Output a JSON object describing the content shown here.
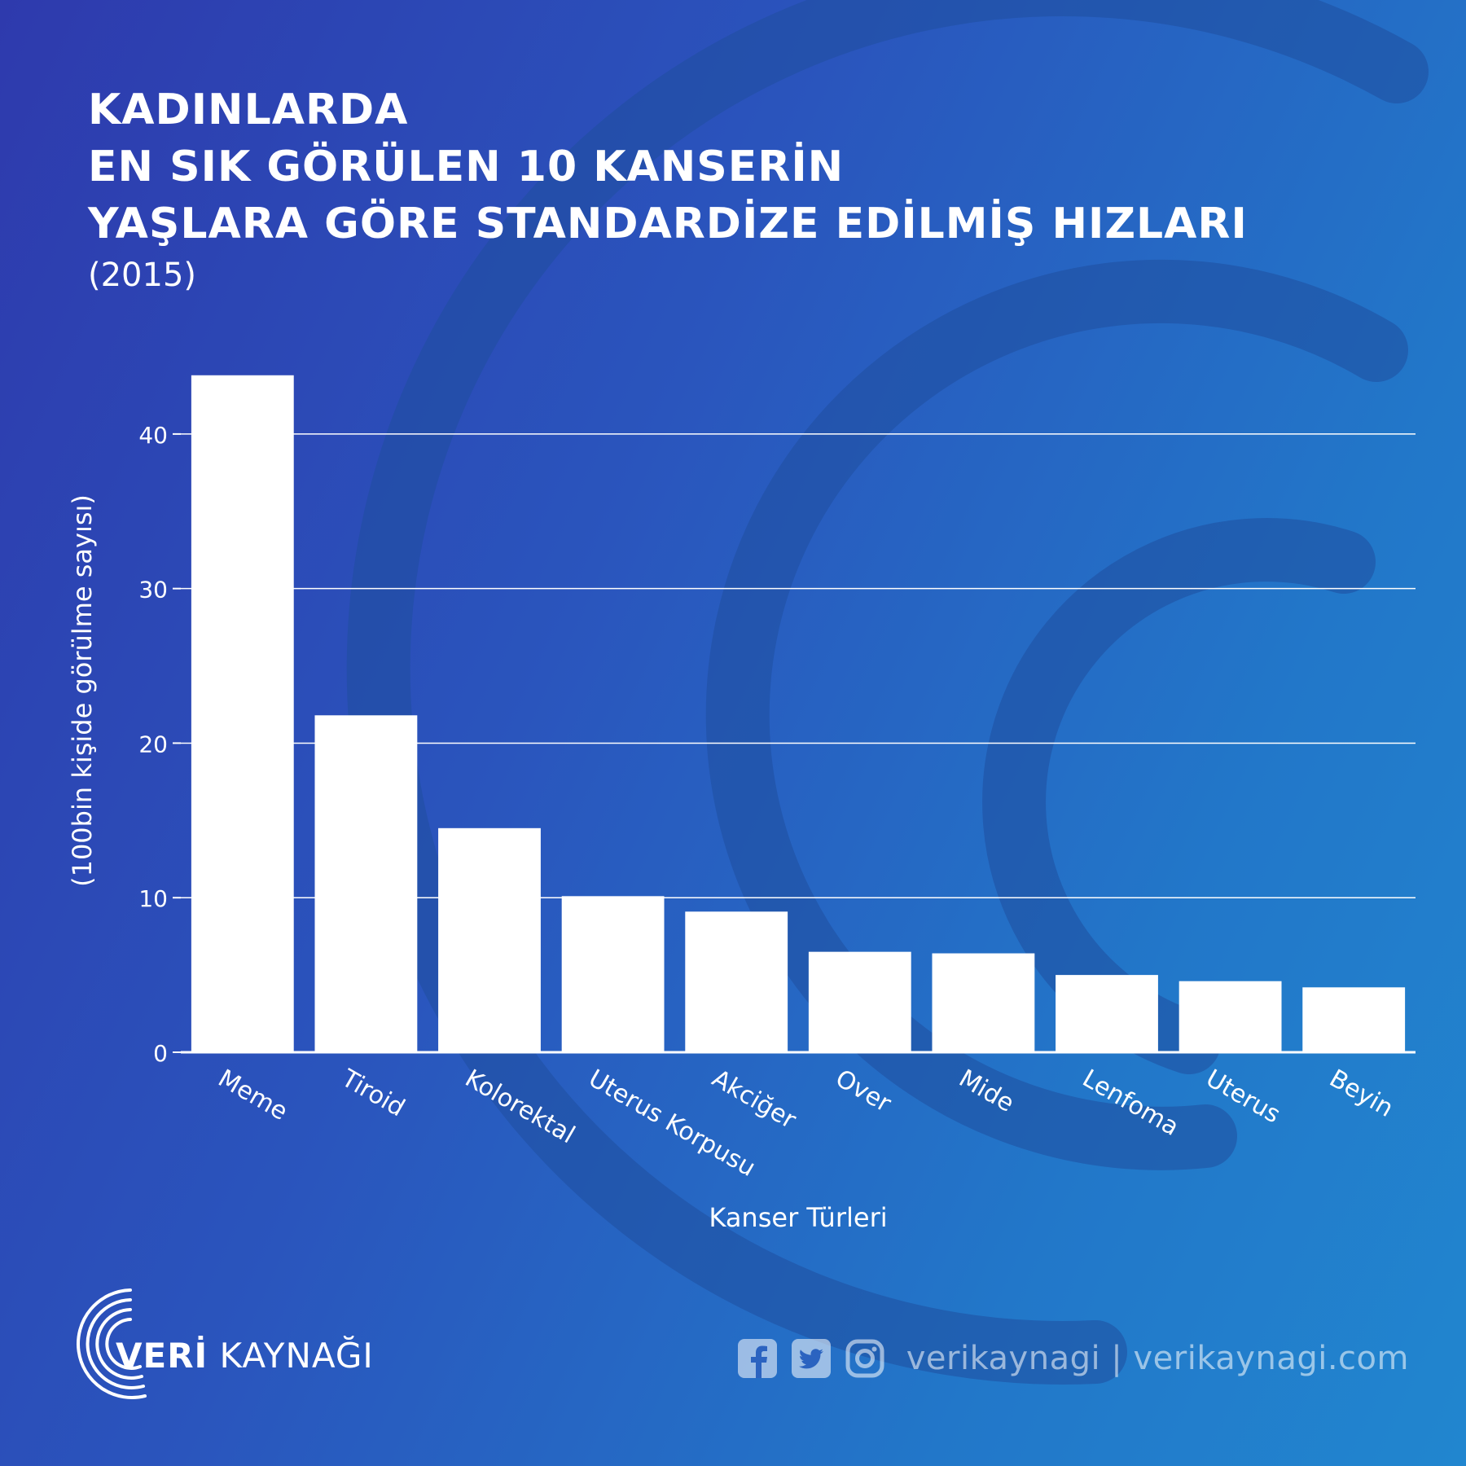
{
  "header": {
    "title_lines": [
      "KADINLARDA",
      "EN SIK GÖRÜLEN 10 KANSERİN",
      "YAŞLARA GÖRE STANDARDİZE EDİLMİŞ HIZLARI"
    ],
    "year": "(2015)"
  },
  "chart_data": {
    "type": "bar",
    "categories": [
      "Meme",
      "Tiroid",
      "Kolorektal",
      "Uterus Korpusu",
      "Akciğer",
      "Over",
      "Mide",
      "Lenfoma",
      "Uterus",
      "Beyin"
    ],
    "values": [
      43.8,
      21.8,
      14.5,
      10.1,
      9.1,
      6.5,
      6.4,
      5.0,
      4.6,
      4.2
    ],
    "xlabel": "Kanser Türleri",
    "ylabel": "(100bin kişide görülme sayısı)",
    "ylim": [
      0,
      45
    ],
    "yticks": [
      0,
      10,
      20,
      30,
      40
    ],
    "grid": true,
    "bar_color": "#ffffff",
    "grid_color": "#ffffff"
  },
  "footer": {
    "brand_strong": "VERİ",
    "brand_light": "KAYNAĞI",
    "social_text": "verikaynagi | verikaynagi.com",
    "icons": [
      "facebook-icon",
      "twitter-icon",
      "instagram-icon"
    ]
  }
}
